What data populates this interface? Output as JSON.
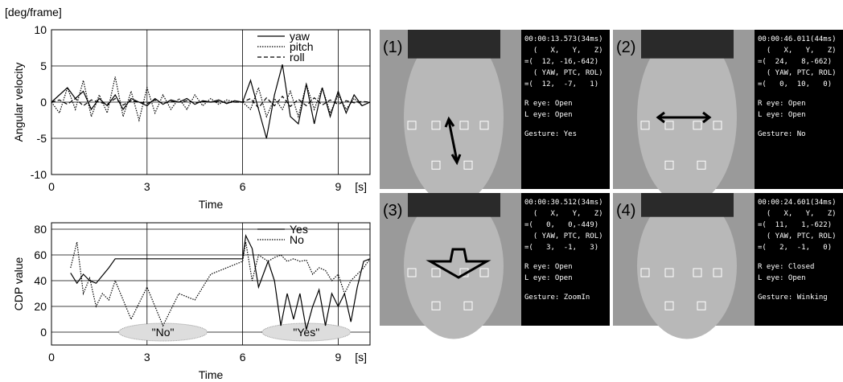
{
  "chart_data": [
    {
      "type": "line",
      "y_unit": "[deg/frame]",
      "y_label": "Angular velocity",
      "x_label": "Time",
      "x_unit": "[s]",
      "x": [
        0,
        0.25,
        0.5,
        0.75,
        1,
        1.25,
        1.5,
        1.75,
        2,
        2.25,
        2.5,
        2.75,
        3,
        3.25,
        3.5,
        3.75,
        4,
        4.25,
        4.5,
        4.75,
        5,
        5.25,
        5.5,
        5.75,
        6,
        6.25,
        6.5,
        6.75,
        7,
        7.25,
        7.5,
        7.75,
        8,
        8.25,
        8.5,
        8.75,
        9,
        9.25,
        9.5,
        9.75,
        10
      ],
      "series": [
        {
          "name": "yaw",
          "color": "#000",
          "dash": "",
          "values": [
            0,
            1,
            2,
            0.5,
            1.5,
            -1,
            0.5,
            -0.5,
            1,
            -1,
            0.5,
            0,
            -0.5,
            0.5,
            -0.3,
            0.3,
            0,
            0.5,
            -0.3,
            0.2,
            0,
            0.3,
            -0.2,
            0.2,
            0,
            3,
            -1,
            -5,
            1,
            5.2,
            -2,
            -3,
            2.5,
            -3,
            2,
            -2,
            1.5,
            -1.5,
            1,
            -0.5,
            0
          ]
        },
        {
          "name": "pitch",
          "color": "#000",
          "dash": "1.5 1.5",
          "values": [
            0,
            -1.5,
            2,
            -1,
            3,
            -2,
            1,
            -1.5,
            3.5,
            -2,
            1.5,
            -2.5,
            2,
            -1.5,
            1,
            -1,
            0.5,
            -1,
            1,
            -0.5,
            0.5,
            -0.3,
            0.3,
            0,
            0,
            -1,
            2,
            -2,
            0.5,
            -1,
            1.5,
            -2,
            2.5,
            -1,
            2,
            -1.5,
            1,
            -1,
            0.5,
            -0.5,
            0
          ]
        },
        {
          "name": "roll",
          "color": "#000",
          "dash": "5 3",
          "values": [
            0,
            0.3,
            -0.3,
            0.5,
            -0.5,
            0.3,
            0,
            -0.3,
            0.5,
            -0.4,
            0.2,
            0,
            -0.2,
            0.3,
            -0.2,
            0.1,
            0,
            0.2,
            -0.1,
            0.1,
            0,
            0.1,
            -0.1,
            0,
            0,
            0.5,
            -0.8,
            0.6,
            -0.5,
            0.8,
            -0.6,
            0.4,
            -0.5,
            0.6,
            -0.4,
            0.3,
            -0.3,
            0.2,
            -0.1,
            0.1,
            0
          ]
        }
      ],
      "xlim": [
        0,
        10
      ],
      "xticks": [
        0,
        3,
        6,
        9
      ],
      "ylim": [
        -10,
        10
      ],
      "yticks": [
        -10,
        -5,
        0,
        5,
        10
      ],
      "grid": true,
      "legend": "top-right"
    },
    {
      "type": "line",
      "y_label": "CDP value",
      "x_label": "Time",
      "x_unit": "[s]",
      "x": [
        0.6,
        0.8,
        1,
        1.2,
        1.4,
        1.6,
        1.8,
        2,
        2.5,
        3,
        3.5,
        4,
        4.5,
        5,
        5.5,
        6,
        6.1,
        6.3,
        6.5,
        6.8,
        7,
        7.2,
        7.4,
        7.6,
        7.8,
        8,
        8.2,
        8.4,
        8.6,
        8.8,
        9,
        9.2,
        9.4,
        9.6,
        9.8,
        10
      ],
      "series": [
        {
          "name": "Yes",
          "color": "#000",
          "dash": "",
          "values": [
            46,
            38,
            45,
            40,
            38,
            44,
            50,
            57,
            57,
            57,
            57,
            57,
            57,
            57,
            57,
            57,
            75,
            65,
            35,
            55,
            40,
            5,
            30,
            10,
            30,
            2,
            20,
            33,
            5,
            30,
            20,
            30,
            8,
            35,
            55,
            57
          ]
        },
        {
          "name": "No",
          "color": "#000",
          "dash": "1.5 1.5",
          "values": [
            50,
            70,
            30,
            42,
            20,
            30,
            25,
            40,
            10,
            35,
            5,
            30,
            25,
            45,
            50,
            55,
            70,
            40,
            60,
            55,
            58,
            60,
            55,
            57,
            55,
            56,
            45,
            50,
            48,
            40,
            45,
            30,
            40,
            45,
            50,
            57
          ]
        }
      ],
      "annotations": [
        "\"No\"",
        "\"Yes\""
      ],
      "xlim": [
        0,
        10
      ],
      "xticks": [
        0,
        3,
        6,
        9
      ],
      "ylim": [
        -10,
        85
      ],
      "yticks": [
        0,
        20,
        40,
        60,
        80
      ],
      "grid": true,
      "legend": "top-right"
    }
  ],
  "panels": [
    {
      "label": "(1)",
      "lines": [
        "00:00:13.573(34ms)",
        "  (   X,   Y,   Z)",
        "=(  12, -16,-642)",
        "  ( YAW, PTC, ROL)",
        "=(  12,  -7,   1)",
        "R eye: Open",
        "L eye: Open",
        "Gesture: Yes"
      ]
    },
    {
      "label": "(2)",
      "lines": [
        "00:00:46.011(44ms)",
        "  (   X,   Y,   Z)",
        "=(  24,   8,-662)",
        "  ( YAW, PTC, ROL)",
        "=(   0,  10,   0)",
        "R eye: Open",
        "L eye: Open",
        "Gesture: No"
      ]
    },
    {
      "label": "(3)",
      "lines": [
        "00:00:30.512(34ms)",
        "  (   X,   Y,   Z)",
        "=(   0,   0,-449)",
        "  ( YAW, PTC, ROL)",
        "=(   3,  -1,   3)",
        "R eye: Open",
        "L eye: Open",
        "Gesture: ZoomIn"
      ]
    },
    {
      "label": "(4)",
      "lines": [
        "00:00:24.601(34ms)",
        "  (   X,   Y,   Z)",
        "=(  11,   1,-622)",
        "  ( YAW, PTC, ROL)",
        "=(   2,  -1,   0)",
        "R eye: Closed",
        "L eye: Open",
        "Gesture: Winking"
      ]
    }
  ]
}
